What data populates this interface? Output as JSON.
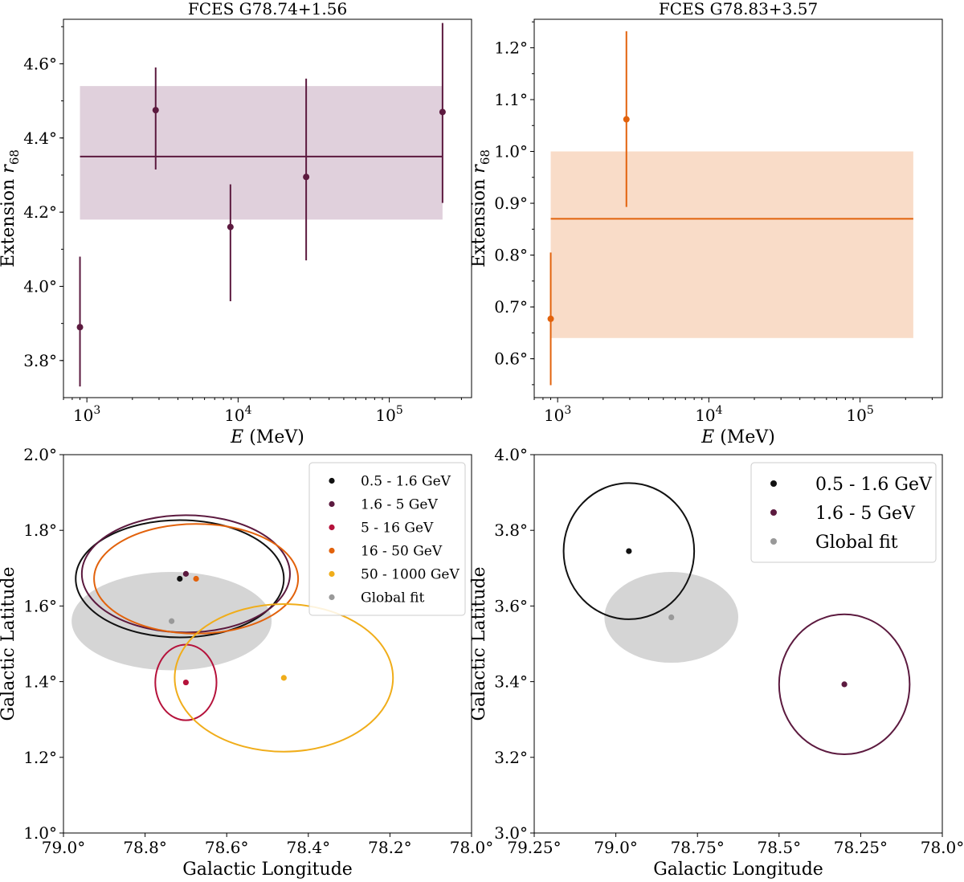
{
  "colors": {
    "maroon": "#5c1a3f",
    "orange": "#e2620c",
    "black": "#111111",
    "crimson": "#b5123b",
    "yellow": "#f0ad1a",
    "gray": "#999999",
    "band_maroon": "#e0d0dc",
    "band_orange": "#f9dcc8",
    "global_fill": "#d0d0d0"
  },
  "chart_data": [
    {
      "id": "extension-left",
      "type": "scatter",
      "title": "FCES G78.74+1.56",
      "xlabel_italic": "E",
      "xlabel_unit": " (MeV)",
      "ylabel_prefix": "Extension ",
      "ylabel_sym": "r",
      "ylabel_sub": "68",
      "xscale": "log",
      "xlim": [
        700,
        350000
      ],
      "ylim": [
        3.7,
        4.72
      ],
      "xticks": [
        {
          "value": 1000,
          "base": "10",
          "exp": "3"
        },
        {
          "value": 10000,
          "base": "10",
          "exp": "4"
        },
        {
          "value": 100000,
          "base": "10",
          "exp": "5"
        }
      ],
      "yticks": [
        {
          "value": 3.8,
          "label": "3.8°"
        },
        {
          "value": 4.0,
          "label": "4.0°"
        },
        {
          "value": 4.2,
          "label": "4.2°"
        },
        {
          "value": 4.4,
          "label": "4.4°"
        },
        {
          "value": 4.6,
          "label": "4.6°"
        }
      ],
      "color_key": "maroon",
      "band_color_key": "band_maroon",
      "global_fit": {
        "value": 4.35,
        "lower": 4.18,
        "upper": 4.54,
        "x_range": [
          900,
          225000
        ]
      },
      "points": [
        {
          "x": 900,
          "y": 3.89,
          "lo": 3.73,
          "hi": 4.08
        },
        {
          "x": 2850,
          "y": 4.475,
          "lo": 4.315,
          "hi": 4.59
        },
        {
          "x": 8900,
          "y": 4.16,
          "lo": 3.96,
          "hi": 4.275
        },
        {
          "x": 28200,
          "y": 4.295,
          "lo": 4.07,
          "hi": 4.56
        },
        {
          "x": 225000,
          "y": 4.47,
          "lo": 4.225,
          "hi": 4.71
        }
      ]
    },
    {
      "id": "extension-right",
      "type": "scatter",
      "title": "FCES G78.83+3.57",
      "xlabel_italic": "E",
      "xlabel_unit": " (MeV)",
      "ylabel_prefix": "Extension ",
      "ylabel_sym": "r",
      "ylabel_sub": "68",
      "xscale": "log",
      "xlim": [
        700,
        350000
      ],
      "ylim": [
        0.525,
        1.255
      ],
      "xticks": [
        {
          "value": 1000,
          "base": "10",
          "exp": "3"
        },
        {
          "value": 10000,
          "base": "10",
          "exp": "4"
        },
        {
          "value": 100000,
          "base": "10",
          "exp": "5"
        }
      ],
      "yticks": [
        {
          "value": 0.6,
          "label": "0.6°"
        },
        {
          "value": 0.7,
          "label": "0.7°"
        },
        {
          "value": 0.8,
          "label": "0.8°"
        },
        {
          "value": 0.9,
          "label": "0.9°"
        },
        {
          "value": 1.0,
          "label": "1.0°"
        },
        {
          "value": 1.1,
          "label": "1.1°"
        },
        {
          "value": 1.2,
          "label": "1.2°"
        }
      ],
      "color_key": "orange",
      "band_color_key": "band_orange",
      "global_fit": {
        "value": 0.87,
        "lower": 0.64,
        "upper": 1.0,
        "x_range": [
          900,
          225000
        ]
      },
      "points": [
        {
          "x": 900,
          "y": 0.677,
          "lo": 0.549,
          "hi": 0.805
        },
        {
          "x": 2850,
          "y": 1.062,
          "lo": 0.893,
          "hi": 1.232
        }
      ]
    },
    {
      "id": "position-left",
      "type": "scatter",
      "xlabel": "Galactic Longitude",
      "ylabel": "Galactic Latitude",
      "xlim": [
        79.0,
        78.0
      ],
      "ylim": [
        1.0,
        2.0
      ],
      "xticks": [
        {
          "value": 79.0,
          "label": "79.0°"
        },
        {
          "value": 78.8,
          "label": "78.8°"
        },
        {
          "value": 78.6,
          "label": "78.6°"
        },
        {
          "value": 78.4,
          "label": "78.4°"
        },
        {
          "value": 78.2,
          "label": "78.2°"
        },
        {
          "value": 78.0,
          "label": "78.0°"
        }
      ],
      "yticks": [
        {
          "value": 1.0,
          "label": "1.0°"
        },
        {
          "value": 1.2,
          "label": "1.2°"
        },
        {
          "value": 1.4,
          "label": "1.4°"
        },
        {
          "value": 1.6,
          "label": "1.6°"
        },
        {
          "value": 1.8,
          "label": "1.8°"
        },
        {
          "value": 2.0,
          "label": "2.0°"
        }
      ],
      "legend_position": "top-right",
      "global_fit": {
        "l": 78.735,
        "b": 1.56,
        "rl": 0.245,
        "rb": 0.13
      },
      "series": [
        {
          "name": "0.5 - 1.6 GeV",
          "color_key": "black",
          "l": 78.715,
          "b": 1.672,
          "rl": 0.255,
          "rb": 0.155
        },
        {
          "name": "1.6 - 5 GeV",
          "color_key": "maroon",
          "l": 78.7,
          "b": 1.685,
          "rl": 0.255,
          "rb": 0.155
        },
        {
          "name": "5 - 16 GeV",
          "color_key": "crimson",
          "l": 78.7,
          "b": 1.398,
          "rl": 0.075,
          "rb": 0.1
        },
        {
          "name": "16 - 50 GeV",
          "color_key": "orange",
          "l": 78.675,
          "b": 1.672,
          "rl": 0.25,
          "rb": 0.145
        },
        {
          "name": "50 - 1000 GeV",
          "color_key": "yellow",
          "l": 78.46,
          "b": 1.41,
          "rl": 0.2675,
          "rb": 0.195
        },
        {
          "name": "Global fit",
          "color_key": "gray",
          "l": 78.735,
          "b": 1.56,
          "rl": 0,
          "rb": 0
        }
      ]
    },
    {
      "id": "position-right",
      "type": "scatter",
      "xlabel": "Galactic Longitude",
      "ylabel": "Galactic Latitude",
      "xlim": [
        79.25,
        78.0
      ],
      "ylim": [
        3.0,
        4.0
      ],
      "xticks": [
        {
          "value": 79.25,
          "label": "79.25°"
        },
        {
          "value": 79.0,
          "label": "79.0°"
        },
        {
          "value": 78.75,
          "label": "78.75°"
        },
        {
          "value": 78.5,
          "label": "78.5°"
        },
        {
          "value": 78.25,
          "label": "78.25°"
        },
        {
          "value": 78.0,
          "label": "78.0°"
        }
      ],
      "yticks": [
        {
          "value": 3.0,
          "label": "3.0°"
        },
        {
          "value": 3.2,
          "label": "3.2°"
        },
        {
          "value": 3.4,
          "label": "3.4°"
        },
        {
          "value": 3.6,
          "label": "3.6°"
        },
        {
          "value": 3.8,
          "label": "3.8°"
        },
        {
          "value": 4.0,
          "label": "4.0°"
        }
      ],
      "legend_position": "top-right",
      "global_fit": {
        "l": 78.83,
        "b": 3.57,
        "rl": 0.205,
        "rb": 0.12
      },
      "series": [
        {
          "name": "0.5 - 1.6 GeV",
          "color_key": "black",
          "l": 78.96,
          "b": 3.745,
          "rl": 0.2,
          "rb": 0.18
        },
        {
          "name": "1.6 - 5 GeV",
          "color_key": "maroon",
          "l": 78.3,
          "b": 3.393,
          "rl": 0.2,
          "rb": 0.185
        },
        {
          "name": "Global fit",
          "color_key": "gray",
          "l": 78.83,
          "b": 3.57,
          "rl": 0,
          "rb": 0
        }
      ]
    }
  ]
}
